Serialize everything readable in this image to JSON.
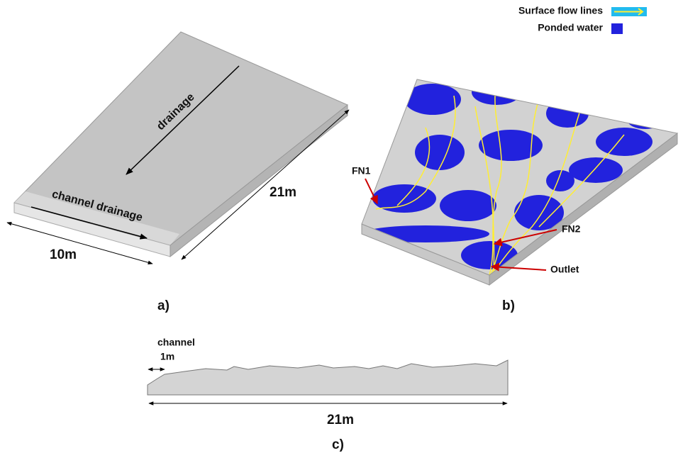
{
  "panel_a": {
    "drainage": "drainage",
    "channel_drainage": "channel drainage",
    "length": "21m",
    "width": "10m",
    "label": "a)"
  },
  "panel_b": {
    "legend": {
      "flow_lines": "Surface flow lines",
      "ponded_water": "Ponded water"
    },
    "fn1": "FN1",
    "fn2": "FN2",
    "outlet": "Outlet",
    "label": "b)"
  },
  "panel_c": {
    "channel": "channel",
    "channel_width": "1m",
    "length": "21m",
    "label": "c)"
  }
}
